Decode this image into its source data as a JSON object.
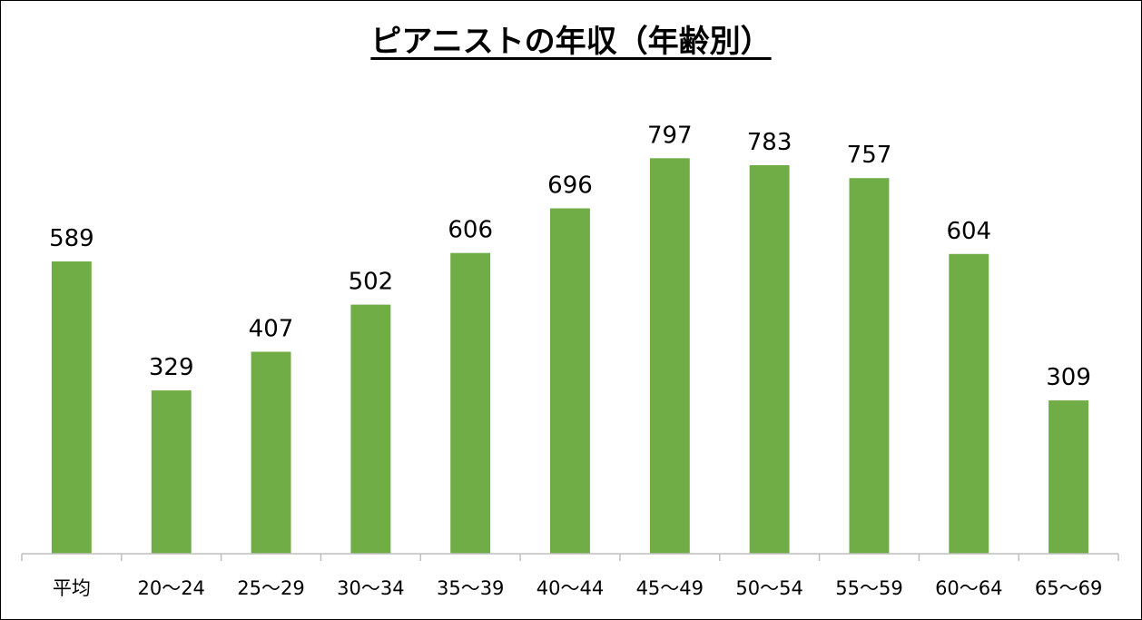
{
  "chart_data": {
    "type": "bar",
    "title": "ピアニストの年収（年齢別）",
    "xlabel": "",
    "ylabel": "",
    "categories": [
      "平均",
      "20〜24",
      "25〜29",
      "30〜34",
      "35〜39",
      "40〜44",
      "45〜49",
      "50〜54",
      "55〜59",
      "60〜64",
      "65〜69"
    ],
    "values": [
      589,
      329,
      407,
      502,
      606,
      696,
      797,
      783,
      757,
      604,
      309
    ],
    "ylim": [
      0,
      900
    ],
    "grid": false,
    "legend": "none",
    "bar_color": "#70ad47"
  }
}
